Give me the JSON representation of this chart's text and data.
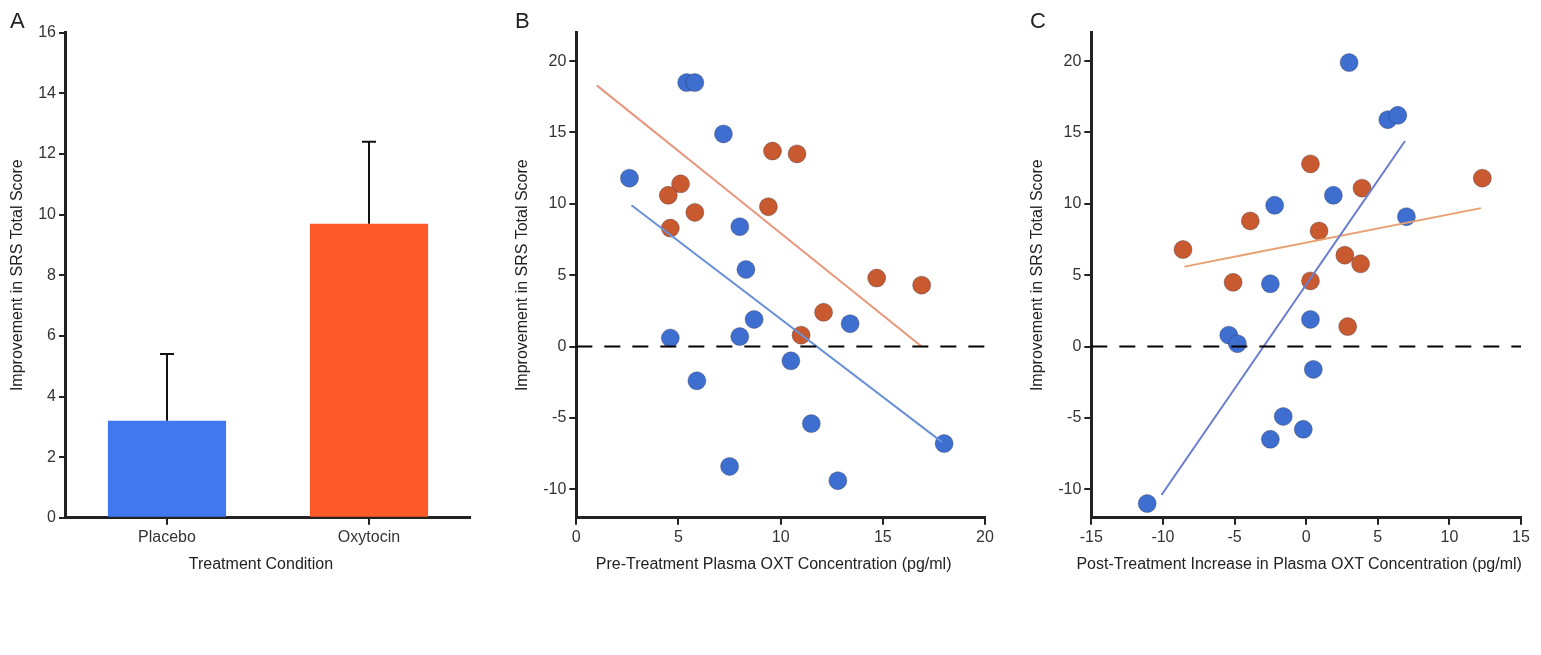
{
  "chart_data": [
    {
      "type": "bar",
      "title": "A",
      "xlabel": "Treatment Condition",
      "ylabel": "Improvement in SRS Total Score",
      "categories": [
        "Placebo",
        "Oxytocin"
      ],
      "values": [
        3.2,
        9.7
      ],
      "colors": [
        "#3f78f0",
        "#ff5a28"
      ],
      "errors": [
        [
          3.2,
          5.4
        ],
        [
          9.7,
          12.4
        ]
      ],
      "ylim": [
        0,
        16
      ],
      "yticks": [
        0,
        2,
        4,
        6,
        8,
        10,
        12,
        14,
        16
      ],
      "legend": false
    },
    {
      "type": "scatter",
      "title": "B",
      "xlabel": "Pre-Treatment Plasma OXT Concentration (pg/ml)",
      "ylabel": "Improvement in SRS Total Score",
      "xlim": [
        0,
        20
      ],
      "xticks": [
        0,
        5,
        10,
        15,
        20
      ],
      "ylim": [
        -12,
        22
      ],
      "yticks": [
        -10,
        -5,
        0,
        5,
        10,
        15,
        20
      ],
      "legend": false,
      "ref_lines": [
        {
          "axis": "y",
          "value": 0,
          "line_style": "dashed",
          "color": "#000000"
        }
      ],
      "series": [
        {
          "type": "scatter",
          "marker": "circle",
          "color": "#3e6fd0",
          "x": [
            5.4,
            5.8,
            7.2,
            2.6,
            8.0,
            8.3,
            8.7,
            8.0,
            4.6,
            13.4,
            10.5,
            5.9,
            11.5,
            18.0,
            7.5,
            12.8
          ],
          "values": [
            18.5,
            18.5,
            14.9,
            11.8,
            8.4,
            5.4,
            1.9,
            0.7,
            0.6,
            1.6,
            -1.0,
            -2.4,
            -5.4,
            -6.8,
            -8.4,
            -9.4
          ]
        },
        {
          "type": "scatter",
          "marker": "circle",
          "color": "#c95a30",
          "x": [
            9.6,
            10.8,
            5.1,
            4.5,
            5.8,
            9.4,
            4.6,
            14.7,
            16.9,
            12.1,
            11.0
          ],
          "values": [
            13.7,
            13.5,
            11.4,
            10.6,
            9.4,
            9.8,
            8.3,
            4.8,
            4.3,
            2.4,
            0.8
          ]
        },
        {
          "type": "line",
          "marker": "none",
          "line_style": "solid",
          "color": "#6a90d8",
          "x": [
            2.7,
            17.9
          ],
          "values": [
            9.9,
            -6.7
          ]
        },
        {
          "type": "line",
          "marker": "none",
          "line_style": "solid",
          "color": "#e8967c",
          "x": [
            1.0,
            16.9
          ],
          "values": [
            18.3,
            0
          ]
        }
      ]
    },
    {
      "type": "scatter",
      "title": "C",
      "xlabel": "Post-Treatment Increase in Plasma OXT Concentration (pg/ml)",
      "ylabel": "Improvement in SRS Total Score",
      "xlim": [
        -15,
        15
      ],
      "xticks": [
        -15,
        -10,
        -5,
        0,
        5,
        10,
        15
      ],
      "ylim": [
        -12,
        22
      ],
      "yticks": [
        -10,
        -5,
        0,
        5,
        10,
        15,
        20
      ],
      "legend": false,
      "ref_lines": [
        {
          "axis": "y",
          "value": 0,
          "line_style": "dashed",
          "color": "#000000"
        }
      ],
      "series": [
        {
          "type": "scatter",
          "marker": "circle",
          "color": "#3e6fd0",
          "x": [
            3.0,
            5.7,
            6.4,
            1.9,
            -2.2,
            7.0,
            -2.5,
            0.3,
            -5.4,
            -4.8,
            0.5,
            -1.6,
            -0.2,
            -2.5,
            -11.1
          ],
          "values": [
            19.9,
            15.9,
            16.2,
            10.6,
            9.9,
            9.1,
            4.4,
            1.9,
            0.8,
            0.2,
            -1.6,
            -4.9,
            -5.8,
            -6.5,
            -11.0
          ]
        },
        {
          "type": "scatter",
          "marker": "circle",
          "color": "#c95a30",
          "x": [
            0.3,
            12.3,
            3.9,
            -3.9,
            0.9,
            -8.6,
            2.7,
            3.8,
            -5.1,
            0.3,
            2.9
          ],
          "values": [
            12.8,
            11.8,
            11.1,
            8.8,
            8.1,
            6.8,
            6.4,
            5.8,
            4.5,
            4.6,
            1.4
          ]
        },
        {
          "type": "line",
          "marker": "none",
          "line_style": "solid",
          "color": "#6a7ed0",
          "x": [
            -10.1,
            6.9
          ],
          "values": [
            -10.4,
            14.4
          ]
        },
        {
          "type": "line",
          "marker": "none",
          "line_style": "solid",
          "color": "#e8a070",
          "x": [
            -8.5,
            12.2
          ],
          "values": [
            5.6,
            9.7
          ]
        }
      ]
    }
  ]
}
